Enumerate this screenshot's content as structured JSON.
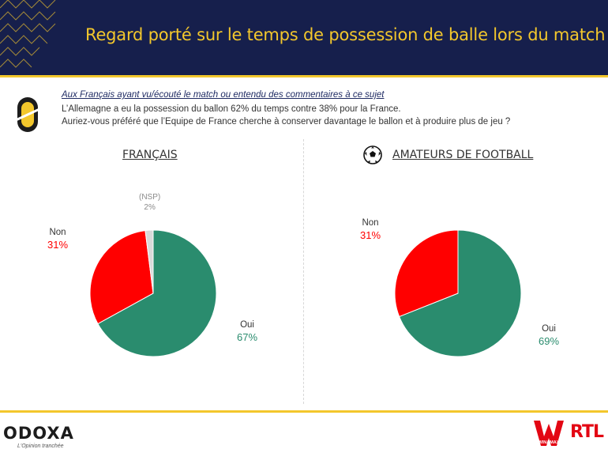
{
  "header": {
    "title": "Regard porté sur le temps de possession de balle lors du match"
  },
  "intro": {
    "context": "Aux Français ayant vu/écouté le match ou entendu des commentaires à ce sujet",
    "question_line1": "L’Allemagne a eu la possession du ballon 62% du temps contre 38% pour la France.",
    "question_line2": "Auriez-vous préféré que l’Equipe de France cherche à conserver davantage le ballon et à produire plus de jeu ?"
  },
  "colors": {
    "oui": "#2a8c6e",
    "non": "#ff0000",
    "nsp": "#d9d9d9",
    "header_bg": "#161f4c",
    "accent": "#f3c72c"
  },
  "chart_data": [
    {
      "type": "pie",
      "title": "FRANÇAIS",
      "slices": [
        {
          "label": "Oui",
          "value": 67
        },
        {
          "label": "Non",
          "value": 31
        },
        {
          "label": "(NSP)",
          "value": 2
        }
      ]
    },
    {
      "type": "pie",
      "title": "AMATEURS DE FOOTBALL",
      "icon": "soccer-ball-icon",
      "slices": [
        {
          "label": "Oui",
          "value": 69
        },
        {
          "label": "Non",
          "value": 31
        }
      ]
    }
  ],
  "labels": {
    "c1_oui_lbl": "Oui",
    "c1_oui_pct": "67%",
    "c1_non_lbl": "Non",
    "c1_non_pct": "31%",
    "c1_nsp_lbl": "(NSP)",
    "c1_nsp_pct": "2%",
    "c2_oui_lbl": "Oui",
    "c2_oui_pct": "69%",
    "c2_non_lbl": "Non",
    "c2_non_pct": "31%"
  },
  "footer": {
    "brand": "ODOXA",
    "tagline": "L'Opinion tranchée",
    "partner1": "WINAMAX",
    "partner2": "RTL"
  }
}
